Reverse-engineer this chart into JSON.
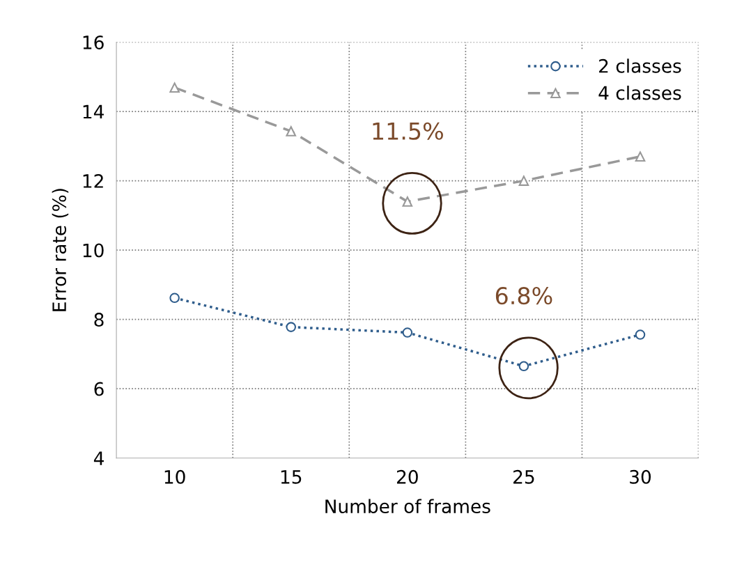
{
  "chart_data": {
    "type": "line",
    "xlabel": "Number of frames",
    "ylabel": "Error rate (%)",
    "categories": [
      "10",
      "15",
      "20",
      "25",
      "30"
    ],
    "series": [
      {
        "name": "2 classes",
        "color": "#2f5d8c",
        "marker": "circle",
        "line_style": "dotted",
        "values": [
          8.62,
          7.78,
          7.62,
          6.65,
          7.56
        ]
      },
      {
        "name": "4 classes",
        "color": "#999999",
        "marker": "triangle",
        "line_style": "dashed",
        "values": [
          14.69,
          13.43,
          11.4,
          12.0,
          12.7
        ]
      }
    ],
    "ylim": [
      4,
      16
    ],
    "yticks": [
      4,
      6,
      8,
      10,
      12,
      14,
      16
    ],
    "grid": true,
    "legend": "top right",
    "annotations": [
      {
        "text": "11.5%",
        "x": "20",
        "y": 11.4
      },
      {
        "text": "6.8%",
        "x": "25",
        "y": 6.65
      }
    ]
  }
}
